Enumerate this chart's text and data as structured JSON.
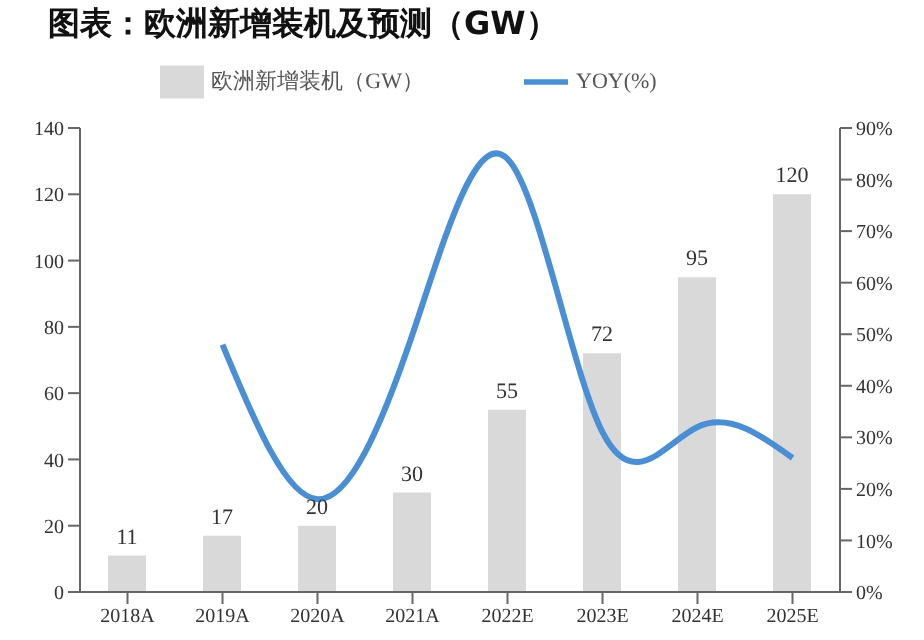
{
  "chart_data": {
    "type": "bar",
    "title": "图表：欧洲新增装机及预测（GW）",
    "categories": [
      "2018A",
      "2019A",
      "2020A",
      "2021A",
      "2022E",
      "2023E",
      "2024E",
      "2025E"
    ],
    "series": [
      {
        "name": "欧洲新增装机（GW）",
        "color": "#d9d9d9",
        "values": [
          11,
          17,
          20,
          30,
          55,
          72,
          95,
          120
        ],
        "value_labels": [
          "11",
          "17",
          "20",
          "30",
          "55",
          "72",
          "95",
          "120"
        ]
      },
      {
        "name": "YOY(%)",
        "type": "line",
        "axis": "y2",
        "color": "#4a8fd4",
        "values": [
          null,
          48,
          18,
          50,
          84,
          31,
          32,
          26
        ]
      }
    ],
    "ylim": [
      0,
      140
    ],
    "yticks": [
      0,
      20,
      40,
      60,
      80,
      100,
      120,
      140
    ],
    "y2lim": [
      0,
      90
    ],
    "y2ticks": [
      {
        "value": 0,
        "label": "0%"
      },
      {
        "value": 10,
        "label": "10%"
      },
      {
        "value": 20,
        "label": "20%"
      },
      {
        "value": 30,
        "label": "30%"
      },
      {
        "value": 40,
        "label": "40%"
      },
      {
        "value": 50,
        "label": "50%"
      },
      {
        "value": 60,
        "label": "60%"
      },
      {
        "value": 70,
        "label": "70%"
      },
      {
        "value": 80,
        "label": "80%"
      },
      {
        "value": 90,
        "label": "90%"
      }
    ],
    "legend": "top",
    "grid": false,
    "marker": "none"
  }
}
